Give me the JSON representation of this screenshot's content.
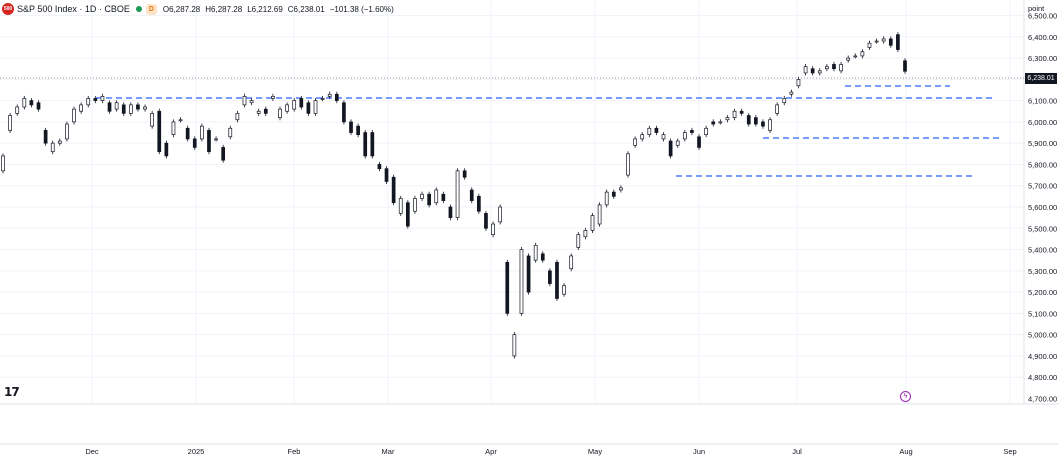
{
  "header": {
    "logo_text": "500",
    "title": "S&P 500 Index · 1D · CBOE",
    "market_badge": "D",
    "open": "O6,287.28",
    "high": "H6,287.28",
    "low": "L6,212.69",
    "close": "C6,238.01",
    "change": "−101.38 (−1.60%)"
  },
  "axis": {
    "unit_label": "point",
    "last_price_label": "6,238.01"
  },
  "flash_icon": "ϟ",
  "chart_data": {
    "type": "candlestick",
    "title": "S&P 500 Index · 1D · CBOE",
    "ylim": [
      4660,
      6540
    ],
    "y_ticks": [
      4700,
      4800,
      4900,
      5000,
      5100,
      5200,
      5300,
      5400,
      5500,
      5600,
      5700,
      5800,
      5900,
      6000,
      6100,
      6200,
      6300,
      6400,
      6500
    ],
    "y_tick_labels": [
      "4,700.00",
      "4,800.00",
      "4,900.00",
      "5,000.00",
      "5,100.00",
      "5,200.00",
      "5,300.00",
      "5,400.00",
      "5,500.00",
      "5,600.00",
      "5,700.00",
      "5,800.00",
      "5,900.00",
      "6,000.00",
      "6,100.00",
      "6,200.00",
      "6,300.00",
      "6,400.00",
      "6,500.00"
    ],
    "x_labels": [
      "Dec",
      "2025",
      "Feb",
      "Mar",
      "Apr",
      "May",
      "Jun",
      "Jul",
      "Aug",
      "Sep"
    ],
    "last_price": 6238.01,
    "candles": [
      [
        5770,
        5840
      ],
      [
        5960,
        6030
      ],
      [
        6040,
        6070
      ],
      [
        6070,
        6110
      ],
      [
        6100,
        6080
      ],
      [
        6090,
        6060
      ],
      [
        5960,
        5900
      ],
      [
        5860,
        5900
      ],
      [
        5900,
        5910
      ],
      [
        5920,
        5990
      ],
      [
        6000,
        6060
      ],
      [
        6050,
        6080
      ],
      [
        6080,
        6110
      ],
      [
        6110,
        6100
      ],
      [
        6100,
        6120
      ],
      [
        6090,
        6050
      ],
      [
        6060,
        6090
      ],
      [
        6080,
        6040
      ],
      [
        6040,
        6080
      ],
      [
        6080,
        6060
      ],
      [
        6060,
        6070
      ],
      [
        5980,
        6040
      ],
      [
        6050,
        5860
      ],
      [
        5900,
        5840
      ],
      [
        5940,
        6000
      ],
      [
        6010,
        6010
      ],
      [
        5970,
        5920
      ],
      [
        5920,
        5880
      ],
      [
        5920,
        5980
      ],
      [
        5960,
        5860
      ],
      [
        5920,
        5920
      ],
      [
        5880,
        5820
      ],
      [
        5930,
        5970
      ],
      [
        6010,
        6040
      ],
      [
        6080,
        6120
      ],
      [
        6090,
        6100
      ],
      [
        6040,
        6050
      ],
      [
        6060,
        6040
      ],
      [
        6110,
        6120
      ],
      [
        6020,
        6060
      ],
      [
        6050,
        6080
      ],
      [
        6060,
        6100
      ],
      [
        6110,
        6070
      ],
      [
        6090,
        6040
      ],
      [
        6040,
        6100
      ],
      [
        6110,
        6110
      ],
      [
        6120,
        6130
      ],
      [
        6130,
        6100
      ],
      [
        6090,
        6000
      ],
      [
        6000,
        5950
      ],
      [
        5980,
        5940
      ],
      [
        5950,
        5840
      ],
      [
        5950,
        5840
      ],
      [
        5800,
        5780
      ],
      [
        5780,
        5720
      ],
      [
        5740,
        5620
      ],
      [
        5570,
        5640
      ],
      [
        5620,
        5510
      ],
      [
        5580,
        5640
      ],
      [
        5640,
        5660
      ],
      [
        5660,
        5610
      ],
      [
        5620,
        5680
      ],
      [
        5660,
        5630
      ],
      [
        5600,
        5550
      ],
      [
        5550,
        5770
      ],
      [
        5770,
        5740
      ],
      [
        5680,
        5630
      ],
      [
        5650,
        5580
      ],
      [
        5570,
        5500
      ],
      [
        5470,
        5520
      ],
      [
        5530,
        5600
      ],
      [
        5340,
        5100
      ],
      [
        4900,
        5000
      ],
      [
        5100,
        5400
      ],
      [
        5370,
        5200
      ],
      [
        5350,
        5420
      ],
      [
        5380,
        5350
      ],
      [
        5300,
        5240
      ],
      [
        5340,
        5170
      ],
      [
        5190,
        5230
      ],
      [
        5310,
        5370
      ],
      [
        5410,
        5470
      ],
      [
        5460,
        5490
      ],
      [
        5490,
        5560
      ],
      [
        5520,
        5610
      ],
      [
        5610,
        5670
      ],
      [
        5670,
        5650
      ],
      [
        5680,
        5690
      ],
      [
        5750,
        5850
      ],
      [
        5890,
        5920
      ],
      [
        5920,
        5940
      ],
      [
        5940,
        5970
      ],
      [
        5970,
        5950
      ],
      [
        5920,
        5940
      ],
      [
        5910,
        5840
      ],
      [
        5890,
        5910
      ],
      [
        5920,
        5950
      ],
      [
        5960,
        5950
      ],
      [
        5930,
        5880
      ],
      [
        5940,
        5970
      ],
      [
        6000,
        5990
      ],
      [
        6000,
        6000
      ],
      [
        6010,
        6020
      ],
      [
        6020,
        6050
      ],
      [
        6050,
        6040
      ],
      [
        6030,
        5990
      ],
      [
        6020,
        5990
      ],
      [
        6000,
        5980
      ],
      [
        5960,
        6010
      ],
      [
        6040,
        6080
      ],
      [
        6090,
        6110
      ],
      [
        6130,
        6140
      ],
      [
        6170,
        6200
      ],
      [
        6230,
        6260
      ],
      [
        6250,
        6230
      ],
      [
        6230,
        6240
      ],
      [
        6250,
        6260
      ],
      [
        6270,
        6250
      ],
      [
        6240,
        6270
      ],
      [
        6290,
        6300
      ],
      [
        6310,
        6310
      ],
      [
        6310,
        6330
      ],
      [
        6350,
        6370
      ],
      [
        6380,
        6380
      ],
      [
        6380,
        6390
      ],
      [
        6390,
        6360
      ],
      [
        6410,
        6340
      ],
      [
        6287.28,
        6238.01
      ]
    ]
  }
}
